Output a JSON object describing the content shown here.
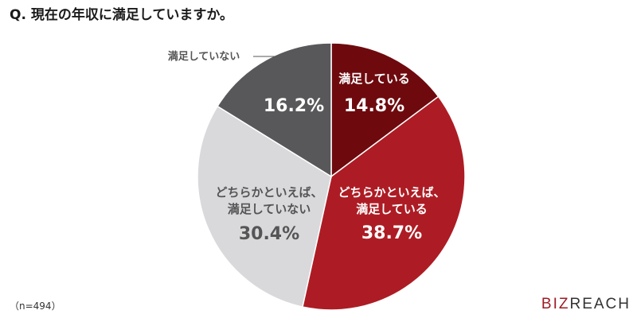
{
  "header": {
    "question": "Q. 現在の年収に満足していますか。"
  },
  "footer": {
    "sample_size": "（n=494）"
  },
  "logo": {
    "part1": "BIZ",
    "part2": "REACH",
    "color1": "#9e1b23",
    "color2": "#333333"
  },
  "chart_data": {
    "type": "pie",
    "title": "Q. 現在の年収に満足していますか。",
    "slices": [
      {
        "name": "満足している",
        "value": 14.8,
        "label": "14.8%",
        "color": "#6e0a0e",
        "text_color": "#ffffff"
      },
      {
        "name": "どちらかといえば、\n満足している",
        "value": 38.7,
        "label": "38.7%",
        "color": "#ad1c24",
        "text_color": "#ffffff"
      },
      {
        "name": "どちらかといえば、\n満足していない",
        "value": 30.4,
        "label": "30.4%",
        "color": "#d9d9dc",
        "text_color": "#555555"
      },
      {
        "name": "満足していない",
        "value": 16.2,
        "label": "16.2%",
        "color": "#58585a",
        "text_color": "#ffffff"
      }
    ],
    "start": "12 o'clock",
    "direction": "clockwise",
    "note": "（n=494）"
  }
}
